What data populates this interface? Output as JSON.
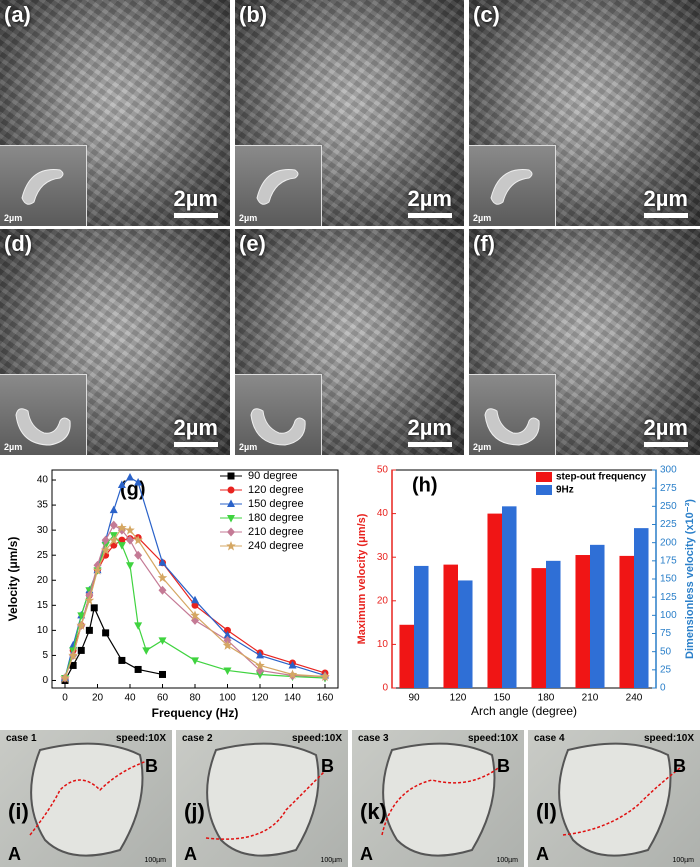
{
  "images": [
    {
      "label": "(a)",
      "scale": "2µm",
      "inset_scale": "2µm"
    },
    {
      "label": "(b)",
      "scale": "2µm",
      "inset_scale": "2µm"
    },
    {
      "label": "(c)",
      "scale": "2µm",
      "inset_scale": "2µm"
    },
    {
      "label": "(d)",
      "scale": "2µm",
      "inset_scale": "2µm"
    },
    {
      "label": "(e)",
      "scale": "2µm",
      "inset_scale": "2µm"
    },
    {
      "label": "(f)",
      "scale": "2µm",
      "inset_scale": "2µm"
    }
  ],
  "videos": [
    {
      "label": "(i)",
      "case": "case 1",
      "speed": "speed:10X",
      "start": "A",
      "end": "B",
      "scale": "100µm"
    },
    {
      "label": "(j)",
      "case": "case 2",
      "speed": "speed:10X",
      "start": "A",
      "end": "B",
      "scale": "100µm"
    },
    {
      "label": "(k)",
      "case": "case 3",
      "speed": "speed:10X",
      "start": "A",
      "end": "B",
      "scale": "100µm"
    },
    {
      "label": "(l)",
      "case": "case 4",
      "speed": "speed:10X",
      "start": "A",
      "end": "B",
      "scale": "100µm"
    }
  ],
  "chart_data": [
    {
      "type": "line",
      "panel_label": "(g)",
      "x_label": "Frequency (Hz)",
      "y_label": "Velocity (μm/s)",
      "xlim": [
        -8,
        168
      ],
      "xticks": [
        0,
        20,
        40,
        60,
        80,
        100,
        120,
        140,
        160
      ],
      "ylim": [
        -1.5,
        42
      ],
      "yticks": [
        0,
        5,
        10,
        15,
        20,
        25,
        30,
        35,
        40
      ],
      "legend": "upper right",
      "series": [
        {
          "name": "90 degree",
          "color": "#000000",
          "marker": "square",
          "x": [
            0,
            5,
            10,
            15,
            18,
            25,
            35,
            45,
            60
          ],
          "values": [
            0,
            3,
            6,
            10,
            14.5,
            9.5,
            4,
            2.2,
            1.2
          ]
        },
        {
          "name": "120 degree",
          "color": "#e8231f",
          "marker": "circle",
          "x": [
            0,
            5,
            10,
            15,
            20,
            25,
            30,
            35,
            40,
            45,
            60,
            80,
            100,
            120,
            140,
            160
          ],
          "values": [
            0.5,
            6,
            11,
            17,
            22,
            25,
            27,
            28,
            28.3,
            28.5,
            23.5,
            15,
            10,
            5.5,
            3.5,
            1.5
          ]
        },
        {
          "name": "150 degree",
          "color": "#2a62c9",
          "marker": "triangle",
          "x": [
            0,
            5,
            10,
            15,
            20,
            25,
            30,
            35,
            40,
            45,
            60,
            80,
            100,
            120,
            140,
            160
          ],
          "values": [
            0.5,
            7,
            13,
            18,
            22,
            28,
            34,
            39,
            40.5,
            39.5,
            23.5,
            16,
            9,
            5,
            3,
            1
          ]
        },
        {
          "name": "180 degree",
          "color": "#3fd33f",
          "marker": "down-triangle",
          "x": [
            0,
            5,
            10,
            15,
            20,
            25,
            30,
            35,
            40,
            45,
            50,
            60,
            80,
            100,
            120,
            140,
            160
          ],
          "values": [
            0.5,
            6,
            13,
            18,
            22,
            27,
            29,
            27,
            23,
            11,
            6,
            8,
            4,
            2,
            1.2,
            0.8,
            0.5
          ]
        },
        {
          "name": "210 degree",
          "color": "#c47a95",
          "marker": "diamond",
          "x": [
            0,
            5,
            10,
            15,
            20,
            25,
            30,
            35,
            40,
            45,
            60,
            80,
            100,
            120,
            140,
            160
          ],
          "values": [
            0.5,
            5,
            11,
            17,
            23,
            28,
            31,
            30,
            28,
            25,
            18,
            12,
            8,
            2,
            1,
            0.8
          ]
        },
        {
          "name": "240 degree",
          "color": "#d5a763",
          "marker": "star",
          "x": [
            0,
            5,
            10,
            15,
            20,
            25,
            30,
            35,
            40,
            45,
            60,
            80,
            100,
            120,
            140,
            160
          ],
          "values": [
            0.5,
            5,
            11,
            16,
            22,
            26,
            28,
            30.5,
            30,
            28,
            20.5,
            13,
            7,
            3,
            1.2,
            0.8
          ]
        }
      ]
    },
    {
      "type": "bar",
      "panel_label": "(h)",
      "x_label": "Arch angle (degree)",
      "y_label": "Maximum velocity (μm/s)",
      "y2_label": "Dimensionless velocity (x10⁻³)",
      "categories": [
        "90",
        "120",
        "150",
        "180",
        "210",
        "240"
      ],
      "ylim": [
        0,
        50
      ],
      "yticks": [
        0,
        10,
        20,
        30,
        40,
        50
      ],
      "y2lim": [
        0,
        300
      ],
      "y2ticks": [
        0,
        25,
        50,
        75,
        100,
        125,
        150,
        175,
        200,
        225,
        250,
        275,
        300
      ],
      "y_color": "#e8231f",
      "y2_color": "#2a7fc9",
      "legend": "upper right",
      "series": [
        {
          "name": "step-out frequency",
          "color": "#f01515",
          "values": [
            14.5,
            28.3,
            40,
            27.5,
            30.5,
            30.3
          ]
        },
        {
          "name": "9Hz",
          "color": "#2f6fd6",
          "axis": "y2",
          "values": [
            168,
            148,
            250,
            175,
            197,
            220
          ]
        }
      ]
    }
  ]
}
